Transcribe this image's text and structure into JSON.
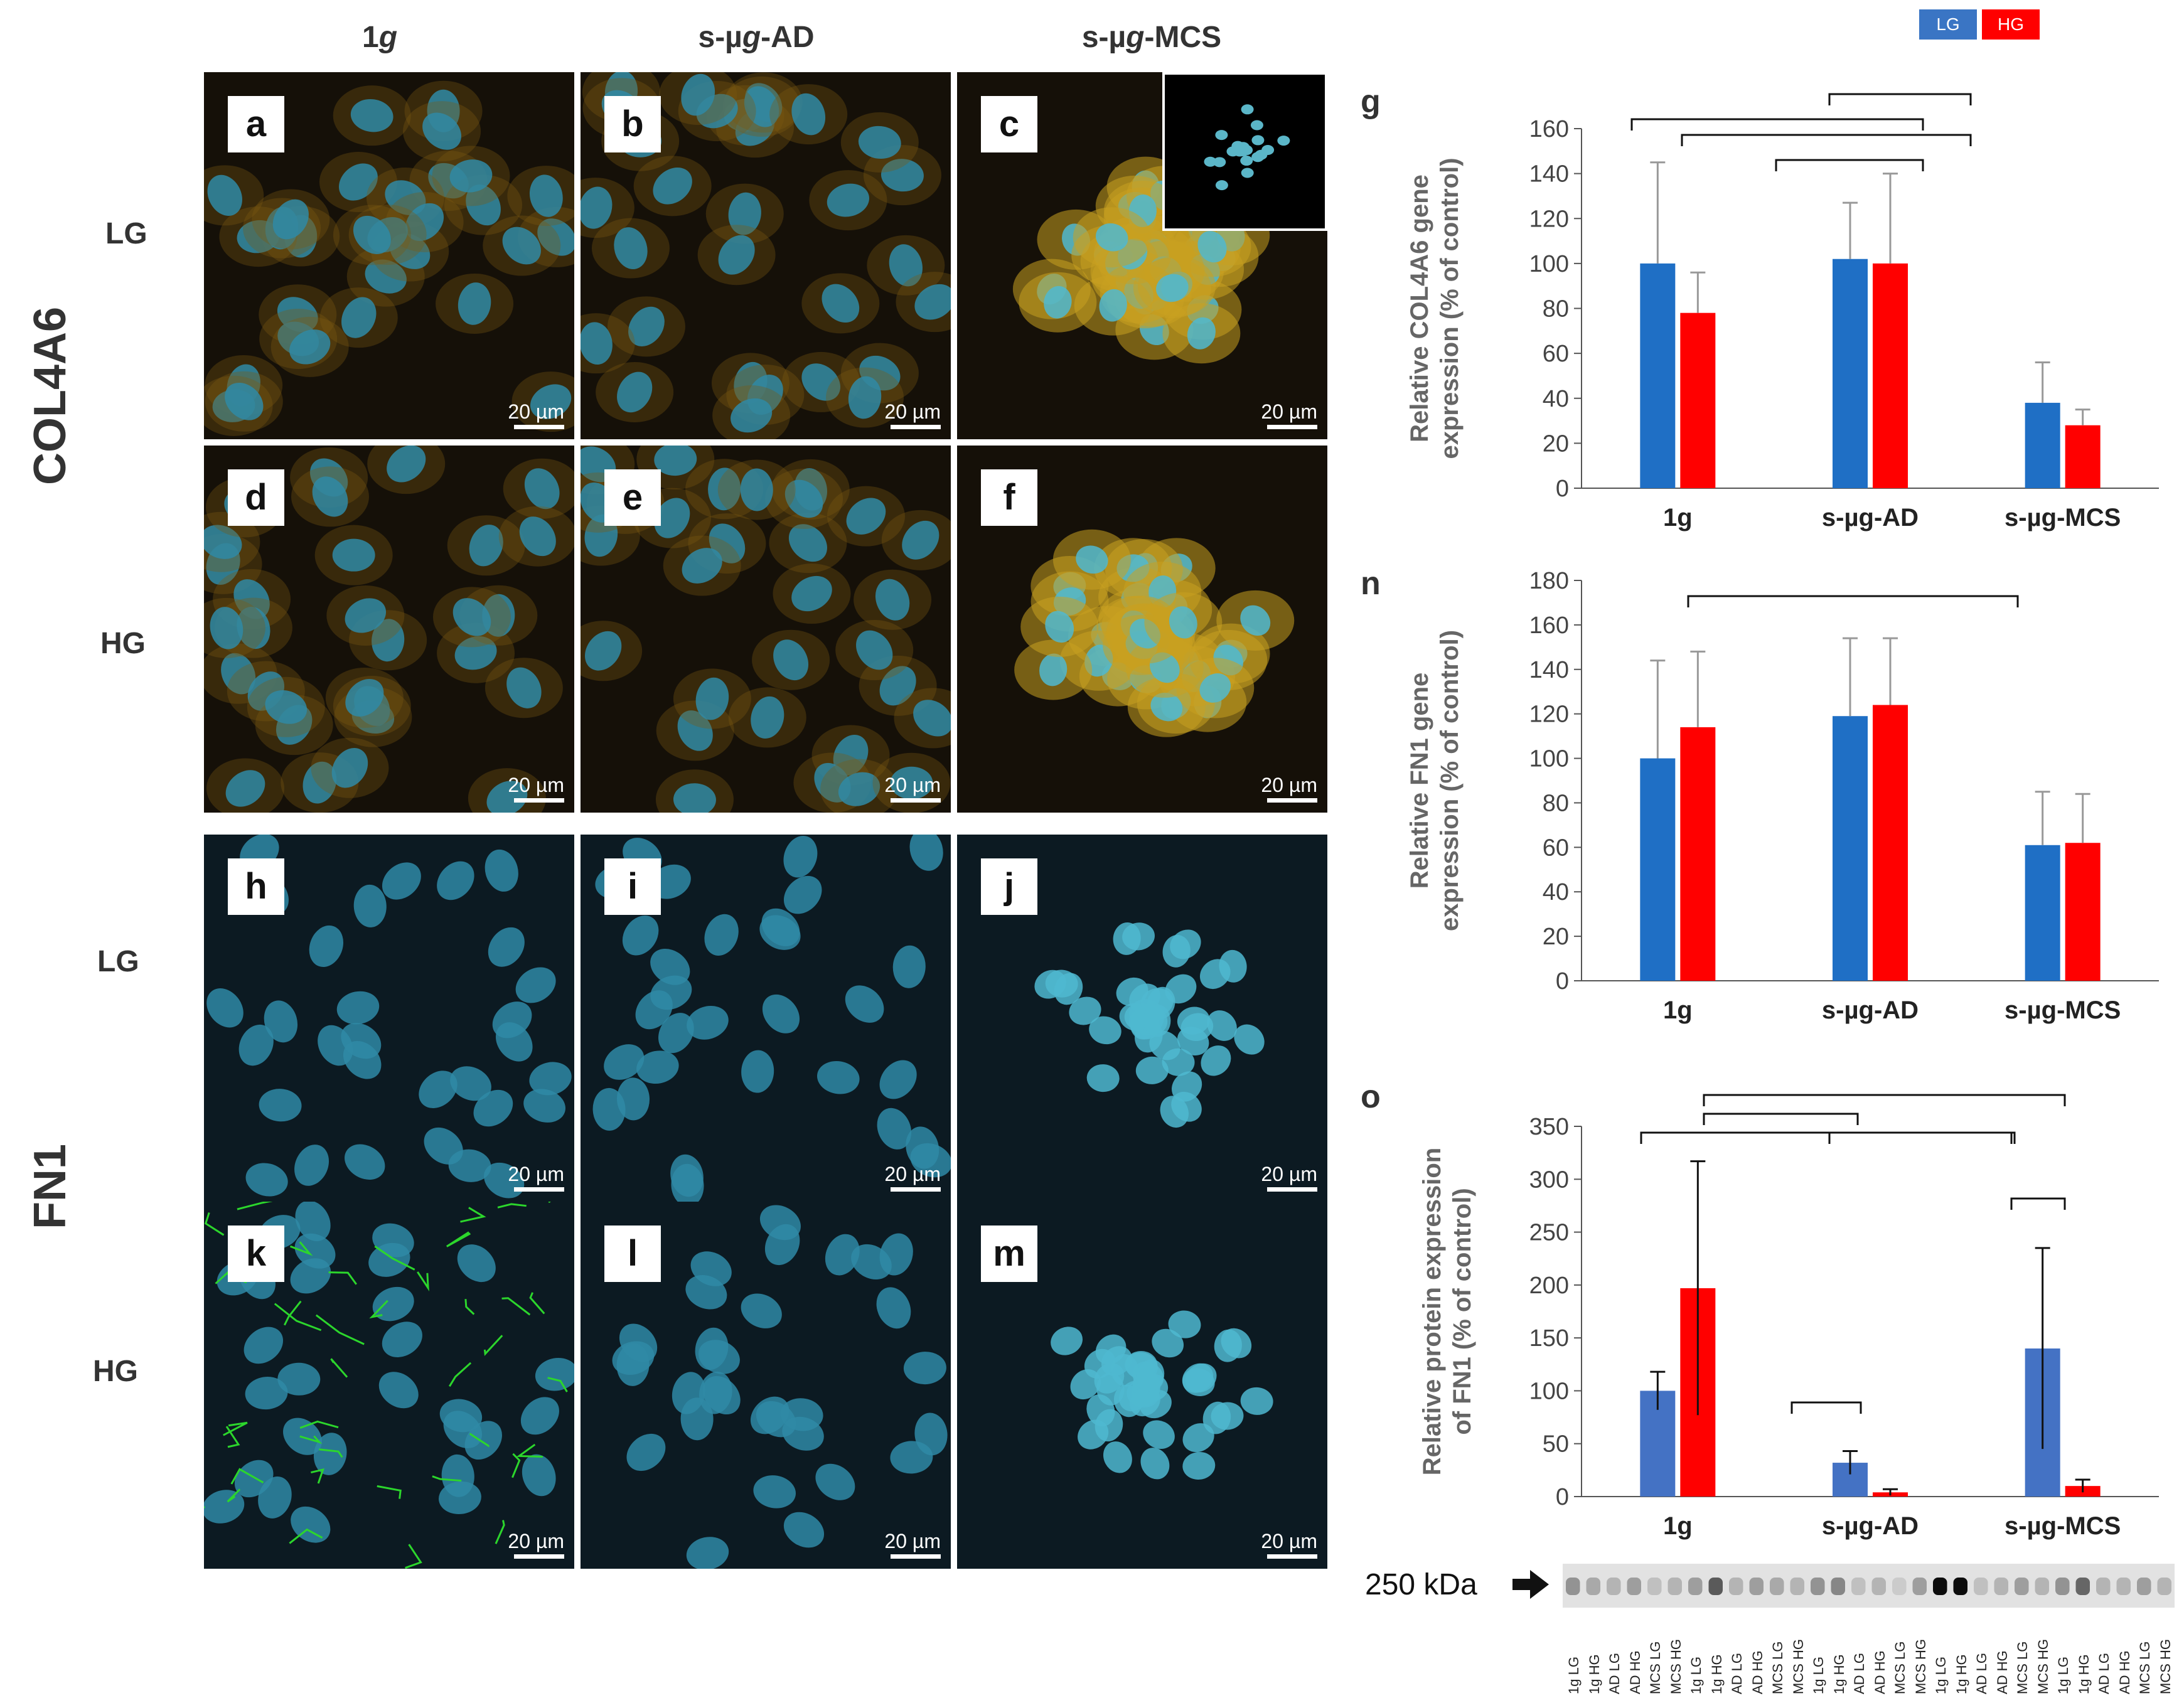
{
  "figure": {
    "column_headers": [
      "1g",
      "s-µg-AD",
      "s-µg-MCS"
    ],
    "row_group_labels": [
      "COL4A6",
      "FN1"
    ],
    "row_labels": [
      "LG",
      "HG",
      "LG",
      "HG"
    ],
    "scale_bar": "20 µm",
    "panel_letters": [
      "a",
      "b",
      "c",
      "d",
      "e",
      "f",
      "h",
      "i",
      "j",
      "k",
      "l",
      "m"
    ],
    "legend": {
      "lg": "LG",
      "hg": "HG",
      "lg_color": "#3a75c4",
      "hg_color": "#ff0000"
    },
    "marker": "250 kDa",
    "lane_labels": [
      "1g LG",
      "1g HG",
      "AD LG",
      "AD HG",
      "MCS LG",
      "MCS HG",
      "1g LG",
      "1g HG",
      "AD LG",
      "AD HG",
      "MCS LG",
      "MCS HG",
      "1g LG",
      "1g HG",
      "AD LG",
      "AD HG",
      "MCS LG",
      "MCS HG",
      "1g LG",
      "1g HG",
      "AD LG",
      "AD HG",
      "MCS LG",
      "MCS HG",
      "1g LG",
      "1g HG",
      "AD LG",
      "AD HG",
      "MCS LG",
      "MCS HG"
    ]
  },
  "chart_data": [
    {
      "panel": "g",
      "type": "bar",
      "categories": [
        "1g",
        "s-µg-AD",
        "s-µg-MCS"
      ],
      "ylabel_line1": "Relative COL4A6 gene",
      "ylabel_line2": "expression (% of control)",
      "ylim": [
        0,
        160
      ],
      "yticks": [
        0,
        20,
        40,
        60,
        80,
        100,
        120,
        140,
        160
      ],
      "series": [
        {
          "name": "LG",
          "color": "#1f6fc5",
          "values": [
            100,
            102,
            38
          ],
          "errors": [
            45,
            25,
            18
          ]
        },
        {
          "name": "HG",
          "color": "#ff0000",
          "values": [
            78,
            100,
            28
          ],
          "errors": [
            18,
            40,
            7
          ]
        }
      ]
    },
    {
      "panel": "n",
      "type": "bar",
      "categories": [
        "1g",
        "s-µg-AD",
        "s-µg-MCS"
      ],
      "ylabel_line1": "Relative FN1 gene",
      "ylabel_line2": "expression (% of control)",
      "ylim": [
        0,
        180
      ],
      "yticks": [
        0,
        20,
        40,
        60,
        80,
        100,
        120,
        140,
        160,
        180
      ],
      "series": [
        {
          "name": "LG",
          "color": "#1f6fc5",
          "values": [
            100,
            119,
            61
          ],
          "errors": [
            44,
            35,
            24
          ]
        },
        {
          "name": "HG",
          "color": "#ff0000",
          "values": [
            114,
            124,
            62
          ],
          "errors": [
            34,
            30,
            22
          ]
        }
      ]
    },
    {
      "panel": "o",
      "type": "bar",
      "categories": [
        "1g",
        "s-µg-AD",
        "s-µg-MCS"
      ],
      "ylabel_line1": "Relative protein expression",
      "ylabel_line2": "of FN1 (% of control)",
      "ylim": [
        0,
        350
      ],
      "yticks": [
        0,
        50,
        100,
        150,
        200,
        250,
        300,
        350
      ],
      "series": [
        {
          "name": "LG",
          "color": "#4472c4",
          "values": [
            100,
            32,
            140
          ],
          "errors": [
            18,
            11,
            95
          ]
        },
        {
          "name": "HG",
          "color": "#ff0000",
          "values": [
            197,
            4,
            10
          ],
          "errors": [
            120,
            3,
            6
          ]
        }
      ]
    }
  ]
}
